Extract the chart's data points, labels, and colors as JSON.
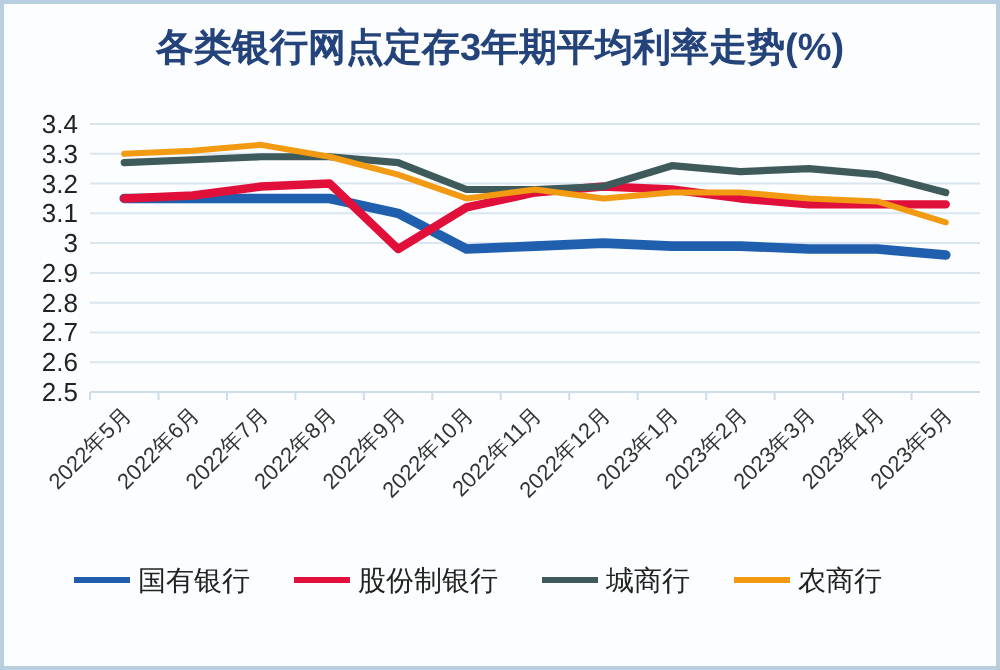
{
  "chart_data": {
    "type": "line",
    "title": "各类银行网点定存3年期平均利率走势(%)",
    "categories": [
      "2022年5月",
      "2022年6月",
      "2022年7月",
      "2022年8月",
      "2022年9月",
      "2022年10月",
      "2022年11月",
      "2022年12月",
      "2023年1月",
      "2023年2月",
      "2023年3月",
      "2023年4月",
      "2023年5月"
    ],
    "series": [
      {
        "name": "国有银行",
        "color": "#1f5fae",
        "values": [
          3.15,
          3.15,
          3.15,
          3.15,
          3.1,
          2.98,
          2.99,
          3.0,
          2.99,
          2.99,
          2.98,
          2.98,
          2.96
        ]
      },
      {
        "name": "股份制银行",
        "color": "#e0103a",
        "values": [
          3.15,
          3.16,
          3.19,
          3.2,
          2.98,
          3.12,
          3.17,
          3.19,
          3.18,
          3.15,
          3.13,
          3.13,
          3.13
        ]
      },
      {
        "name": "城商行",
        "color": "#3e5a5a",
        "values": [
          3.27,
          3.28,
          3.29,
          3.29,
          3.27,
          3.18,
          3.18,
          3.19,
          3.26,
          3.24,
          3.25,
          3.23,
          3.17
        ]
      },
      {
        "name": "农商行",
        "color": "#f29a12",
        "values": [
          3.3,
          3.31,
          3.33,
          3.29,
          3.23,
          3.15,
          3.18,
          3.15,
          3.17,
          3.17,
          3.15,
          3.14,
          3.07
        ]
      }
    ],
    "ylim": [
      2.5,
      3.4
    ],
    "yticks": [
      2.5,
      2.6,
      2.7,
      2.8,
      2.9,
      3,
      3.1,
      3.2,
      3.3,
      3.4
    ],
    "grid": "y",
    "legend": "bottom"
  }
}
